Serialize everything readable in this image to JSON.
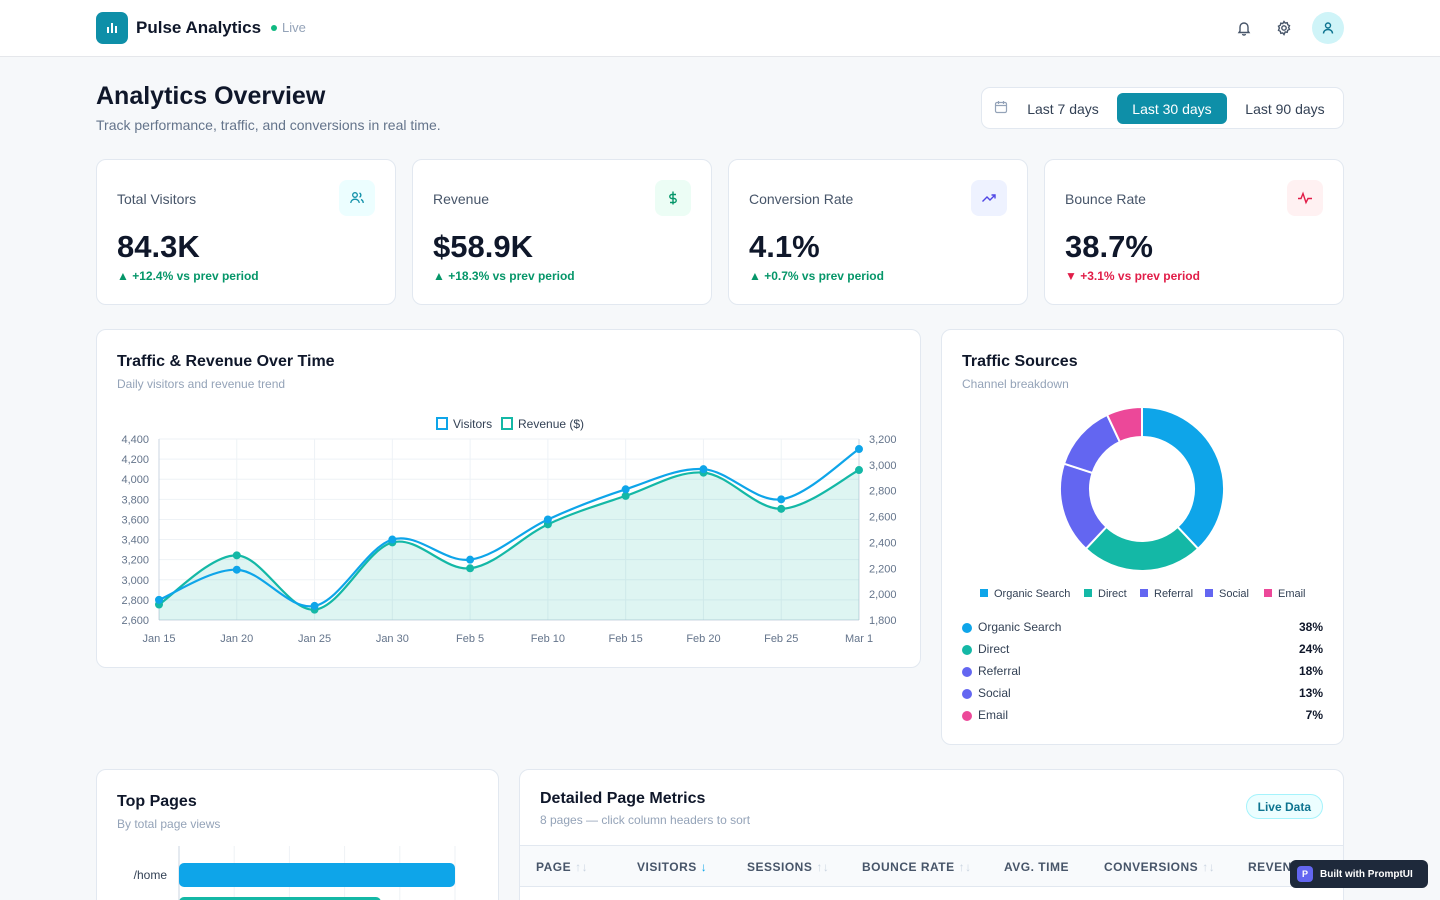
{
  "header": {
    "app_title": "Pulse Analytics",
    "status": "Live",
    "icons": [
      "bar-chart-icon",
      "bell-icon",
      "gear-icon",
      "user-icon"
    ]
  },
  "page": {
    "title": "Analytics Overview",
    "subtitle": "Track performance, traffic, and conversions in real time.",
    "range_options": [
      "Last 7 days",
      "Last 30 days",
      "Last 90 days"
    ],
    "range_selected": "Last 30 days"
  },
  "kpis": [
    {
      "label": "Total Visitors",
      "value": "84.3K",
      "delta": "+12.4% vs prev period",
      "trend": "up",
      "icon": "users-icon"
    },
    {
      "label": "Revenue",
      "value": "$58.9K",
      "delta": "+18.3% vs prev period",
      "trend": "up",
      "icon": "dollar-icon"
    },
    {
      "label": "Conversion Rate",
      "value": "4.1%",
      "delta": "+0.7% vs prev period",
      "trend": "up",
      "icon": "trending-up-icon"
    },
    {
      "label": "Bounce Rate",
      "value": "38.7%",
      "delta": "+3.1% vs prev period",
      "trend": "down",
      "icon": "activity-icon"
    }
  ],
  "traffic_chart": {
    "title": "Traffic & Revenue Over Time",
    "subtitle": "Daily visitors and revenue trend"
  },
  "sources": {
    "title": "Traffic Sources",
    "subtitle": "Channel breakdown",
    "items": [
      {
        "name": "Organic Search",
        "pct": "38%",
        "color": "#0ea5e9"
      },
      {
        "name": "Direct",
        "pct": "24%",
        "color": "#14b8a6"
      },
      {
        "name": "Referral",
        "pct": "18%",
        "color": "#6366f1"
      },
      {
        "name": "Social",
        "pct": "13%",
        "color": "#6366f1"
      },
      {
        "name": "Email",
        "pct": "7%",
        "color": "#ec4899"
      }
    ]
  },
  "top_pages": {
    "title": "Top Pages",
    "subtitle": "By total page views"
  },
  "metrics_table": {
    "title": "Detailed Page Metrics",
    "subtitle": "8 pages — click column headers to sort",
    "badge": "Live Data",
    "columns": [
      "PAGE",
      "VISITORS",
      "SESSIONS",
      "BOUNCE RATE",
      "AVG. TIME",
      "CONVERSIONS",
      "REVENUE"
    ],
    "sorted_column": "VISITORS"
  },
  "promo": {
    "badge": "P",
    "label": "Built with PromptUI"
  },
  "chart_data": [
    {
      "type": "line",
      "title": "",
      "x": [
        "Jan 15",
        "Jan 20",
        "Jan 25",
        "Jan 30",
        "Feb 5",
        "Feb 10",
        "Feb 15",
        "Feb 20",
        "Feb 25",
        "Mar 1"
      ],
      "series": [
        {
          "name": "Visitors",
          "axis": "left",
          "color": "#0ea5e9",
          "values": [
            2800,
            3100,
            2740,
            3400,
            3200,
            3600,
            3900,
            4100,
            3800,
            4300
          ]
        },
        {
          "name": "Revenue ($)",
          "axis": "right",
          "color": "#14b8a6",
          "values": [
            1920,
            2300,
            1880,
            2400,
            2200,
            2540,
            2760,
            2940,
            2660,
            2960
          ]
        }
      ],
      "ylim_left": [
        2600,
        4400
      ],
      "yticks_left": [
        "2,600",
        "2,800",
        "3,000",
        "3,200",
        "3,400",
        "3,600",
        "3,800",
        "4,000",
        "4,200",
        "4,400"
      ],
      "ylim_right": [
        1800,
        3200
      ],
      "yticks_right": [
        "1,800",
        "2,000",
        "2,200",
        "2,400",
        "2,600",
        "2,800",
        "3,000",
        "3,200"
      ],
      "legend": "top-center",
      "grid": true
    },
    {
      "type": "pie",
      "donut": true,
      "categories": [
        "Organic Search",
        "Direct",
        "Referral",
        "Social",
        "Email"
      ],
      "values": [
        38,
        24,
        18,
        13,
        7
      ],
      "colors": [
        "#0ea5e9",
        "#14b8a6",
        "#6366f1",
        "#6366f1",
        "#ec4899"
      ],
      "legend": "bottom"
    },
    {
      "type": "bar",
      "orientation": "horizontal",
      "categories": [
        "/home"
      ],
      "values": [
        100
      ],
      "colors": [
        "#0ea5e9",
        "#14b8a6"
      ],
      "grid": true
    }
  ]
}
